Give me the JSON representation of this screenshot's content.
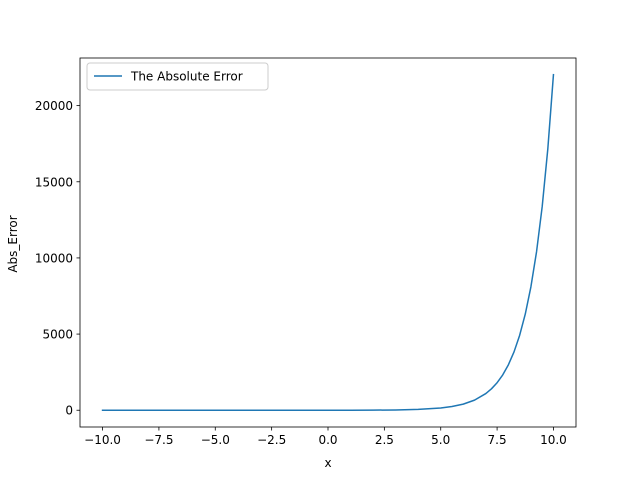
{
  "chart_data": {
    "type": "line",
    "title": "",
    "xlabel": "x",
    "ylabel": "Abs_Error",
    "xlim": [
      -11.0,
      11.0
    ],
    "ylim": [
      -1101,
      23127
    ],
    "xticks": [
      -10.0,
      -7.5,
      -5.0,
      -2.5,
      0.0,
      2.5,
      5.0,
      7.5,
      10.0
    ],
    "xtick_labels": [
      "−10.0",
      "−7.5",
      "−5.0",
      "−2.5",
      "0.0",
      "2.5",
      "5.0",
      "7.5",
      "10.0"
    ],
    "yticks": [
      0,
      5000,
      10000,
      15000,
      20000
    ],
    "ytick_labels": [
      "0",
      "5000",
      "10000",
      "15000",
      "20000"
    ],
    "grid": false,
    "legend": {
      "position": "top-left"
    },
    "series": [
      {
        "name": "The Absolute Error",
        "color": "#1f77b4",
        "x": [
          -10,
          -9,
          -8,
          -7,
          -6,
          -5,
          -4,
          -3,
          -2,
          -1,
          0,
          1,
          2,
          3,
          4,
          5,
          5.5,
          6,
          6.5,
          7,
          7.25,
          7.5,
          7.75,
          8,
          8.25,
          8.5,
          8.75,
          9,
          9.25,
          9.5,
          9.75,
          10
        ],
        "y": [
          0,
          0,
          0,
          0,
          0,
          0,
          0,
          0,
          1,
          1,
          1,
          2,
          6,
          19,
          53,
          147,
          244,
          402,
          664,
          1095,
          1406,
          1806,
          2320,
          2980,
          3828,
          4915,
          6312,
          8105,
          10408,
          13364,
          17161,
          22035
        ]
      }
    ]
  }
}
